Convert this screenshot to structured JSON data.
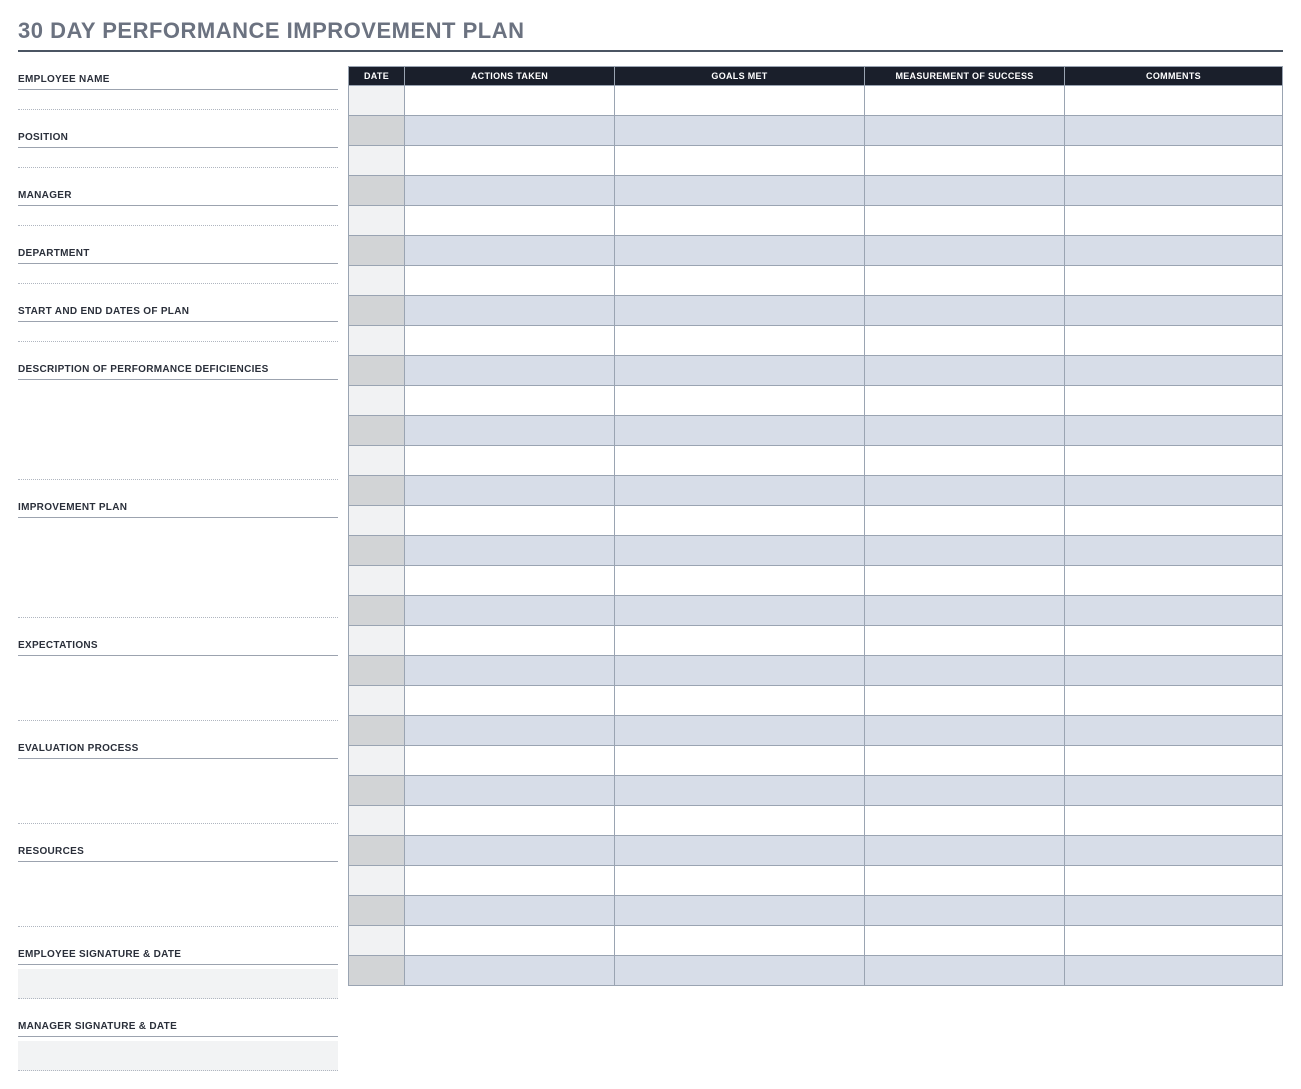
{
  "title": "30 DAY PERFORMANCE IMPROVEMENT PLAN",
  "left_fields": {
    "employee_name": "EMPLOYEE NAME",
    "position": "POSITION",
    "manager": "MANAGER",
    "department": "DEPARTMENT",
    "dates": "START AND END DATES OF PLAN",
    "deficiencies": "DESCRIPTION OF PERFORMANCE DEFICIENCIES",
    "improvement_plan": "IMPROVEMENT PLAN",
    "expectations": "EXPECTATIONS",
    "evaluation": "EVALUATION PROCESS",
    "resources": "RESOURCES",
    "employee_sig": "EMPLOYEE SIGNATURE & DATE",
    "manager_sig": "MANAGER SIGNATURE & DATE"
  },
  "table": {
    "headers": {
      "date": "DATE",
      "actions": "ACTIONS TAKEN",
      "goals": "GOALS MET",
      "measure": "MEASUREMENT OF SUCCESS",
      "comments": "COMMENTS"
    },
    "row_count": 30,
    "colors": {
      "header_bg": "#1a1f2b",
      "header_fg": "#ffffff",
      "odd_date_bg": "#f1f2f3",
      "odd_bg": "#ffffff",
      "even_date_bg": "#d2d4d6",
      "even_bg": "#d7dde8",
      "border": "#9aa4b2"
    }
  },
  "colors": {
    "title_color": "#6b7280",
    "title_underline": "#4b5563",
    "label_color": "#2a2f3a",
    "dotted": "#b0b6c0",
    "sig_box_bg": "#f2f3f4"
  }
}
